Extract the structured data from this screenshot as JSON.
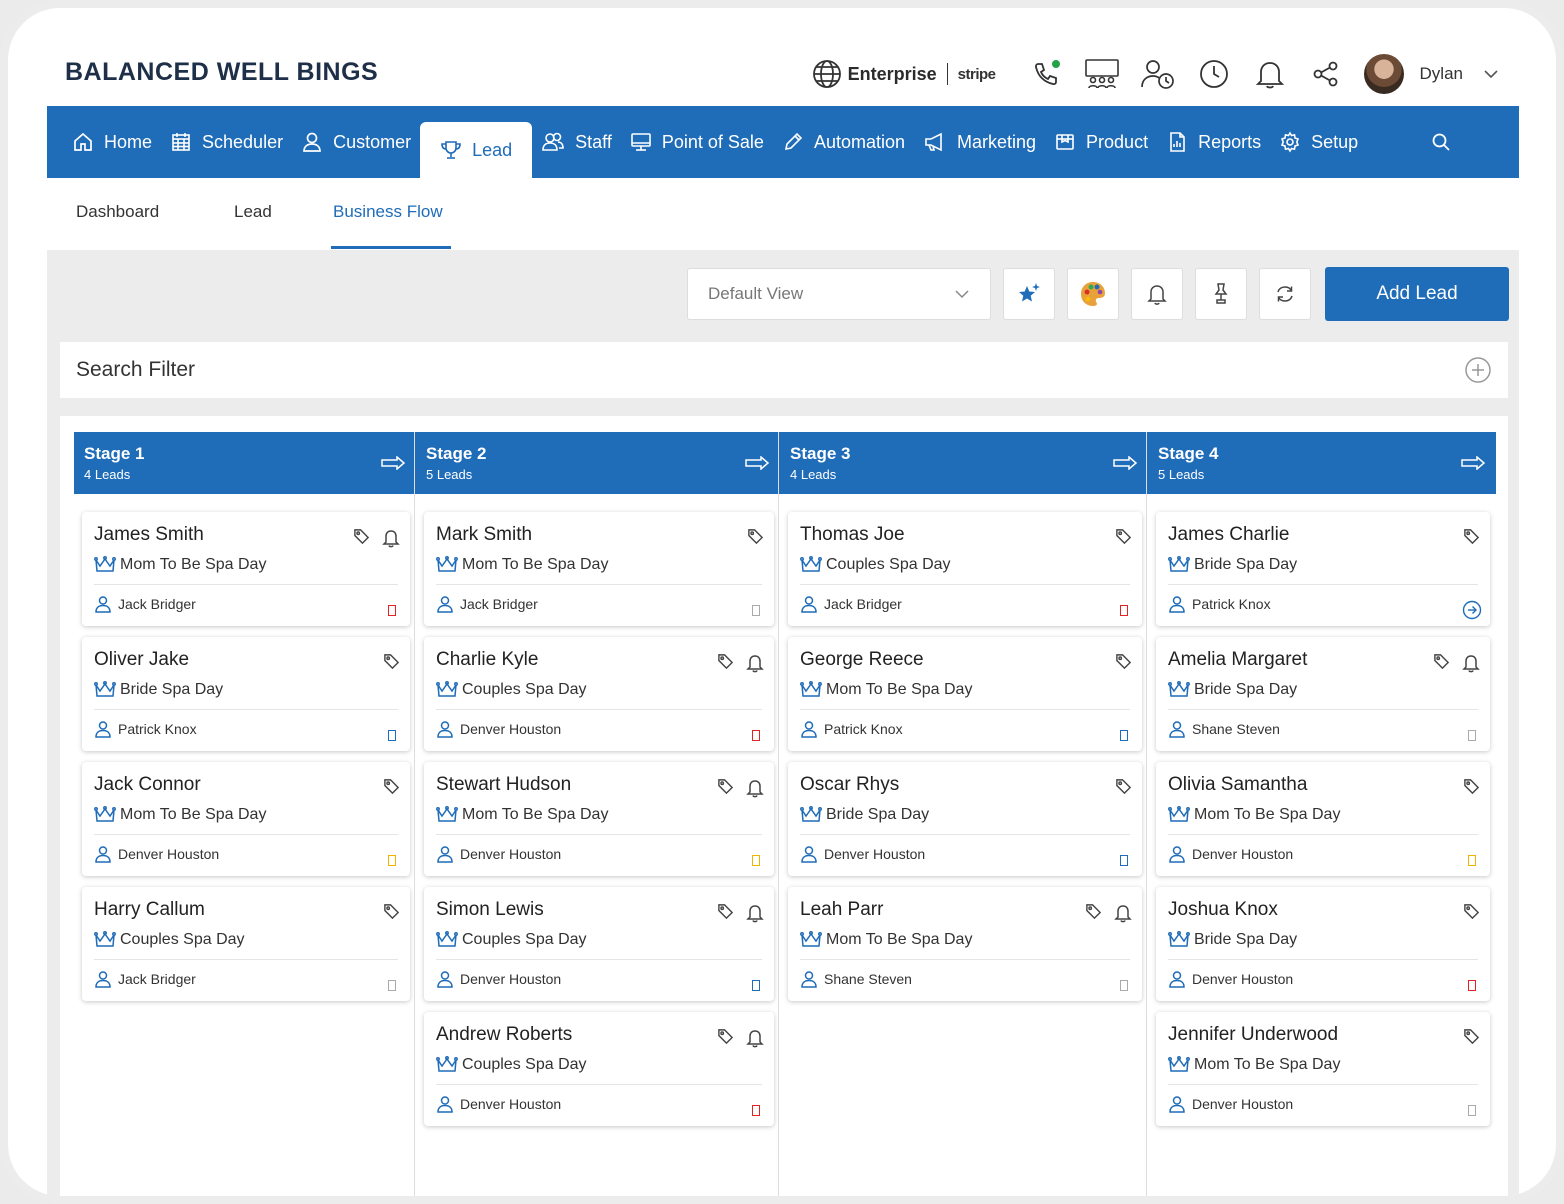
{
  "header": {
    "brand": "BALANCED WELL BINGS",
    "enterprise_label": "Enterprise",
    "stripe_label": "stripe",
    "user_name": "Dylan"
  },
  "nav": {
    "items": [
      {
        "label": "Home",
        "icon": "home-icon"
      },
      {
        "label": "Scheduler",
        "icon": "calendar-icon"
      },
      {
        "label": "Customer",
        "icon": "user-icon"
      },
      {
        "label": "Lead",
        "icon": "trophy-icon",
        "active": true
      },
      {
        "label": "Staff",
        "icon": "users-icon"
      },
      {
        "label": "Point of Sale",
        "icon": "monitor-icon"
      },
      {
        "label": "Automation",
        "icon": "pencil-icon"
      },
      {
        "label": "Marketing",
        "icon": "megaphone-icon"
      },
      {
        "label": "Product",
        "icon": "box-icon"
      },
      {
        "label": "Reports",
        "icon": "report-icon"
      },
      {
        "label": "Setup",
        "icon": "gear-icon"
      }
    ]
  },
  "subnav": {
    "items": [
      "Dashboard",
      "Lead",
      "Business Flow"
    ],
    "active": "Business Flow"
  },
  "toolbar": {
    "view_select": "Default View",
    "add_lead_label": "Add Lead"
  },
  "search_filter": {
    "label": "Search Filter"
  },
  "stages": [
    {
      "title": "Stage 1",
      "count": "4 Leads",
      "cards": [
        {
          "name": "James Smith",
          "service": "Mom To Be Spa Day",
          "staff": "Jack Bridger",
          "bell": true,
          "flag": "red"
        },
        {
          "name": "Oliver Jake",
          "service": "Bride Spa Day",
          "staff": "Patrick Knox",
          "bell": false,
          "flag": "blue"
        },
        {
          "name": "Jack Connor",
          "service": "Mom To Be Spa Day",
          "staff": "Denver Houston",
          "bell": false,
          "flag": "yellow"
        },
        {
          "name": "Harry Callum",
          "service": "Couples Spa Day",
          "staff": "Jack Bridger",
          "bell": false,
          "flag": "grey"
        }
      ]
    },
    {
      "title": "Stage 2",
      "count": "5 Leads",
      "cards": [
        {
          "name": "Mark Smith",
          "service": "Mom To Be Spa Day",
          "staff": "Jack Bridger",
          "bell": false,
          "flag": "grey"
        },
        {
          "name": "Charlie Kyle",
          "service": "Couples Spa Day",
          "staff": "Denver Houston",
          "bell": true,
          "flag": "red"
        },
        {
          "name": "Stewart Hudson",
          "service": "Mom To Be Spa Day",
          "staff": "Denver Houston",
          "bell": true,
          "flag": "yellow"
        },
        {
          "name": "Simon Lewis",
          "service": "Couples Spa Day",
          "staff": "Denver Houston",
          "bell": true,
          "flag": "blue"
        },
        {
          "name": "Andrew Roberts",
          "service": "Couples Spa Day",
          "staff": "Denver Houston",
          "bell": true,
          "flag": "red"
        }
      ]
    },
    {
      "title": "Stage 3",
      "count": "4 Leads",
      "cards": [
        {
          "name": "Thomas Joe",
          "service": "Couples Spa Day",
          "staff": "Jack Bridger",
          "bell": false,
          "flag": "red"
        },
        {
          "name": "George Reece",
          "service": "Mom To Be Spa Day",
          "staff": "Patrick Knox",
          "bell": false,
          "flag": "blue"
        },
        {
          "name": "Oscar Rhys",
          "service": "Bride Spa Day",
          "staff": "Denver Houston",
          "bell": false,
          "flag": "blue"
        },
        {
          "name": "Leah Parr",
          "service": "Mom To Be Spa Day",
          "staff": "Shane Steven",
          "bell": true,
          "flag": "grey"
        }
      ]
    },
    {
      "title": "Stage 4",
      "count": "5 Leads",
      "cards": [
        {
          "name": "James Charlie",
          "service": "Bride Spa Day",
          "staff": "Patrick Knox",
          "bell": false,
          "flag": "go"
        },
        {
          "name": "Amelia Margaret",
          "service": "Bride Spa Day",
          "staff": "Shane Steven",
          "bell": true,
          "flag": "grey"
        },
        {
          "name": "Olivia Samantha",
          "service": "Mom To Be Spa Day",
          "staff": "Denver Houston",
          "bell": false,
          "flag": "yellow"
        },
        {
          "name": "Joshua Knox",
          "service": "Bride Spa Day",
          "staff": "Denver Houston",
          "bell": false,
          "flag": "red"
        },
        {
          "name": "Jennifer Underwood",
          "service": "Mom To Be Spa Day",
          "staff": "Denver Houston",
          "bell": false,
          "flag": "grey"
        }
      ]
    }
  ],
  "colors": {
    "primary": "#1f6cb8",
    "flag_red": "#e02424",
    "flag_blue": "#1f6cb8",
    "flag_yellow": "#f0b400",
    "online": "#21a346"
  }
}
